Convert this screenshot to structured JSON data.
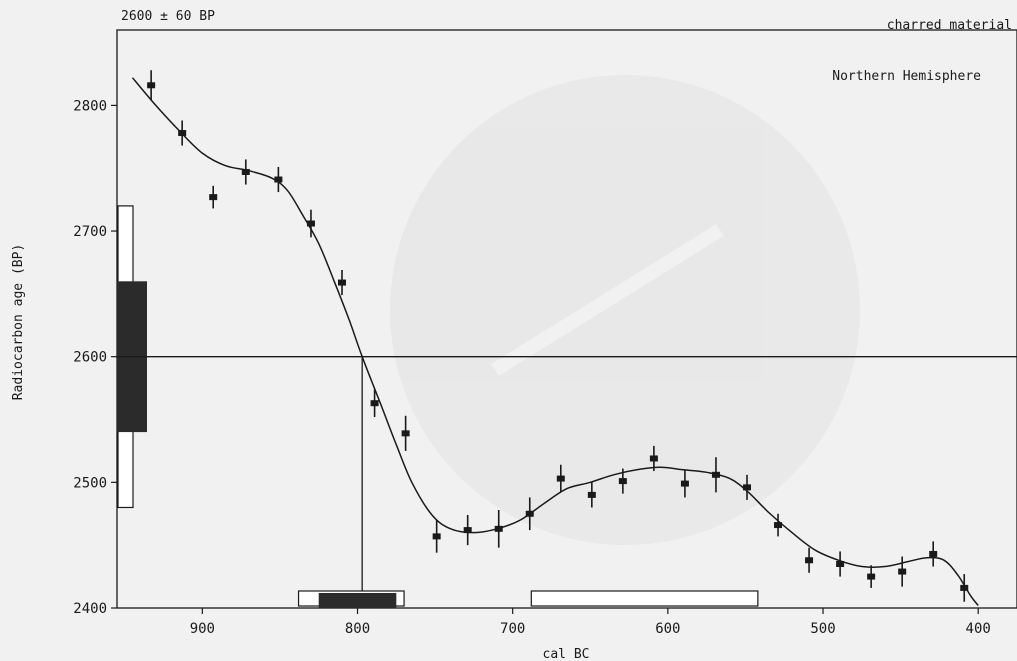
{
  "chart_data": {
    "type": "scatter",
    "header_left": "2600 ± 60 BP",
    "header_right": "charred material",
    "legend_label": "Northern Hemisphere",
    "xlabel": "cal BC",
    "ylabel": "Radiocarbon age (BP)",
    "xlim": [
      955,
      375
    ],
    "ylim": [
      2400,
      2860
    ],
    "x_ticks": [
      900,
      800,
      700,
      600,
      500,
      400
    ],
    "y_ticks": [
      2400,
      2500,
      2600,
      2700,
      2800
    ],
    "grid": false,
    "measured_age": 2600,
    "sigma1_band": [
      2540,
      2660
    ],
    "sigma2_band": [
      2480,
      2720
    ],
    "intercept_x": 797,
    "calibration_curve": [
      [
        945,
        2822
      ],
      [
        930,
        2800
      ],
      [
        915,
        2780
      ],
      [
        900,
        2762
      ],
      [
        885,
        2752
      ],
      [
        870,
        2748
      ],
      [
        855,
        2742
      ],
      [
        845,
        2732
      ],
      [
        835,
        2712
      ],
      [
        825,
        2690
      ],
      [
        815,
        2660
      ],
      [
        805,
        2628
      ],
      [
        797,
        2600
      ],
      [
        785,
        2562
      ],
      [
        775,
        2530
      ],
      [
        765,
        2500
      ],
      [
        752,
        2474
      ],
      [
        740,
        2463
      ],
      [
        725,
        2460
      ],
      [
        710,
        2463
      ],
      [
        695,
        2470
      ],
      [
        680,
        2483
      ],
      [
        665,
        2495
      ],
      [
        650,
        2500
      ],
      [
        635,
        2506
      ],
      [
        620,
        2510
      ],
      [
        605,
        2512
      ],
      [
        590,
        2510
      ],
      [
        575,
        2508
      ],
      [
        560,
        2503
      ],
      [
        548,
        2492
      ],
      [
        535,
        2476
      ],
      [
        520,
        2460
      ],
      [
        505,
        2446
      ],
      [
        490,
        2438
      ],
      [
        475,
        2433
      ],
      [
        460,
        2433
      ],
      [
        445,
        2437
      ],
      [
        433,
        2440
      ],
      [
        422,
        2438
      ],
      [
        413,
        2426
      ],
      [
        405,
        2410
      ],
      [
        400,
        2402
      ]
    ],
    "data_points": [
      {
        "x": 933,
        "y": 2816,
        "err": 12
      },
      {
        "x": 913,
        "y": 2778,
        "err": 10
      },
      {
        "x": 893,
        "y": 2727,
        "err": 9
      },
      {
        "x": 872,
        "y": 2747,
        "err": 10
      },
      {
        "x": 851,
        "y": 2741,
        "err": 10
      },
      {
        "x": 830,
        "y": 2706,
        "err": 11
      },
      {
        "x": 810,
        "y": 2659,
        "err": 10
      },
      {
        "x": 789,
        "y": 2563,
        "err": 11
      },
      {
        "x": 769,
        "y": 2539,
        "err": 14
      },
      {
        "x": 749,
        "y": 2457,
        "err": 13
      },
      {
        "x": 729,
        "y": 2462,
        "err": 12
      },
      {
        "x": 709,
        "y": 2463,
        "err": 15
      },
      {
        "x": 689,
        "y": 2475,
        "err": 13
      },
      {
        "x": 669,
        "y": 2503,
        "err": 11
      },
      {
        "x": 649,
        "y": 2490,
        "err": 10
      },
      {
        "x": 629,
        "y": 2501,
        "err": 10
      },
      {
        "x": 609,
        "y": 2519,
        "err": 10
      },
      {
        "x": 589,
        "y": 2499,
        "err": 11
      },
      {
        "x": 569,
        "y": 2506,
        "err": 14
      },
      {
        "x": 549,
        "y": 2496,
        "err": 10
      },
      {
        "x": 529,
        "y": 2466,
        "err": 9
      },
      {
        "x": 509,
        "y": 2438,
        "err": 10
      },
      {
        "x": 489,
        "y": 2435,
        "err": 10
      },
      {
        "x": 469,
        "y": 2425,
        "err": 9
      },
      {
        "x": 449,
        "y": 2429,
        "err": 12
      },
      {
        "x": 429,
        "y": 2443,
        "err": 10
      },
      {
        "x": 409,
        "y": 2416,
        "err": 11
      }
    ],
    "calibrated_ranges": {
      "one_sigma": [
        [
          825,
          775
        ]
      ],
      "two_sigma": [
        [
          838,
          770
        ],
        [
          688,
          542
        ]
      ]
    }
  }
}
